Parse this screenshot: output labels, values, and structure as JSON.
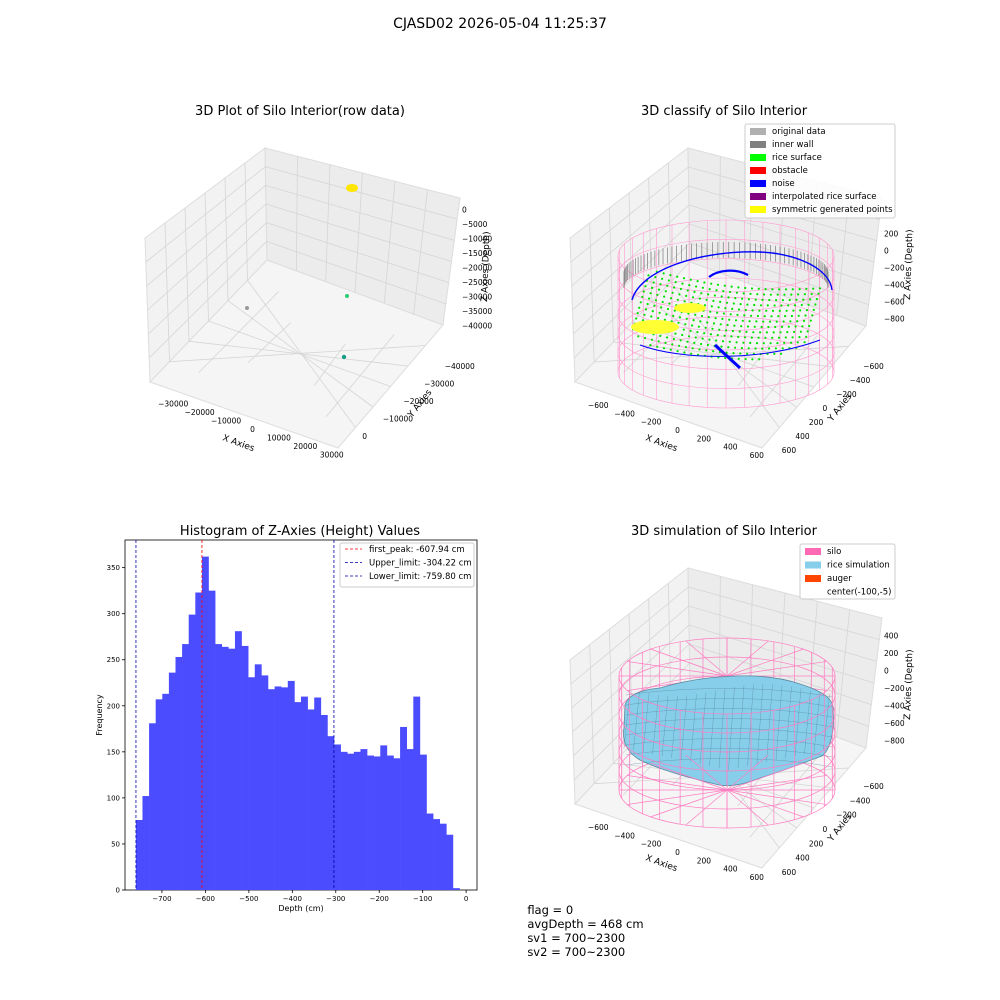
{
  "suptitle": "CJASD02 2026-05-04 11:25:37",
  "panels": {
    "raw": {
      "title": "3D Plot of Silo Interior(row data)",
      "xlabel": "X Axies",
      "ylabel": "Y Axies",
      "zlabel": "Z Axies (Depth)",
      "xticks": [
        "−30000",
        "−20000",
        "−10000",
        "0",
        "10000",
        "20000",
        "30000"
      ],
      "yticks": [
        "0",
        "−10000",
        "−20000",
        "−30000",
        "−40000"
      ],
      "zticks": [
        "0",
        "−5000",
        "−10000",
        "−15000",
        "−20000",
        "−25000",
        "−30000",
        "−35000",
        "−40000"
      ]
    },
    "classify": {
      "title": "3D classify of Silo Interior",
      "xlabel": "X Axies",
      "ylabel": "Y Axies",
      "zlabel": "Z Axies (Depth)",
      "xticks": [
        "−600",
        "−400",
        "−200",
        "0",
        "200",
        "400",
        "600"
      ],
      "yticks": [
        "600",
        "400",
        "200",
        "0",
        "−200",
        "−400",
        "−600"
      ],
      "zticks": [
        "200",
        "0",
        "−200",
        "−400",
        "−600",
        "−800"
      ],
      "legend": [
        {
          "label": "original data",
          "color": "#b0b0b0"
        },
        {
          "label": "inner wall",
          "color": "#808080"
        },
        {
          "label": "rice surface",
          "color": "#00ff00"
        },
        {
          "label": "obstacle",
          "color": "#ff0000"
        },
        {
          "label": "noise",
          "color": "#0000ff"
        },
        {
          "label": "interpolated rice surface",
          "color": "#800080"
        },
        {
          "label": "symmetric generated points",
          "color": "#ffff00"
        }
      ]
    },
    "simulation": {
      "title": "3D simulation of Silo Interior",
      "xlabel": "X Axies",
      "ylabel": "Y Axies",
      "zlabel": "Z Axies (Depth)",
      "xticks": [
        "−600",
        "−400",
        "−200",
        "0",
        "200",
        "400",
        "600"
      ],
      "yticks": [
        "600",
        "400",
        "200",
        "0",
        "−200",
        "−400",
        "−600"
      ],
      "zticks": [
        "400",
        "200",
        "0",
        "−200",
        "−400",
        "−600",
        "−800"
      ],
      "legend": [
        {
          "label": "silo",
          "color": "#ff69b4"
        },
        {
          "label": "rice simulation",
          "color": "#87ceeb"
        },
        {
          "label": "auger",
          "color": "#ff4500"
        },
        {
          "label": "center(-100,-5)",
          "color": ""
        }
      ]
    }
  },
  "chart_data": {
    "type": "bar",
    "title": "Histogram of Z-Axies (Height) Values",
    "xlabel": "Depth (cm)",
    "ylabel": "Frequency",
    "xlim": [
      -785,
      25
    ],
    "ylim": [
      0,
      380
    ],
    "bin_start": -760,
    "bin_width": 15.2,
    "xticks": [
      -700,
      -600,
      -500,
      -400,
      -300,
      -200,
      -100,
      0
    ],
    "yticks": [
      0,
      50,
      100,
      150,
      200,
      250,
      300,
      350
    ],
    "values": [
      76,
      102,
      181,
      207,
      213,
      236,
      253,
      267,
      299,
      323,
      362,
      325,
      267,
      264,
      262,
      281,
      265,
      231,
      245,
      233,
      218,
      221,
      220,
      227,
      204,
      210,
      196,
      209,
      190,
      167,
      158,
      150,
      148,
      150,
      153,
      146,
      145,
      157,
      146,
      143,
      177,
      153,
      210,
      147,
      83,
      77,
      72,
      60,
      2
    ],
    "bar_color": "#4c4cff",
    "lines": [
      {
        "label": "first_peak: -607.94 cm",
        "x": -607.94,
        "color": "#ff0000"
      },
      {
        "label": "Upper_limit: -304.22 cm",
        "x": -304.22,
        "color": "#0000aa"
      },
      {
        "label": "Lower_limit: -759.80 cm",
        "x": -759.8,
        "color": "#0000aa"
      }
    ],
    "legend_position": "top-right"
  },
  "status": {
    "flag": "flag = 0",
    "avg_depth": "avgDepth = 468 cm",
    "sv1": "sv1 = 700~2300",
    "sv2": "sv2 = 700~2300"
  }
}
